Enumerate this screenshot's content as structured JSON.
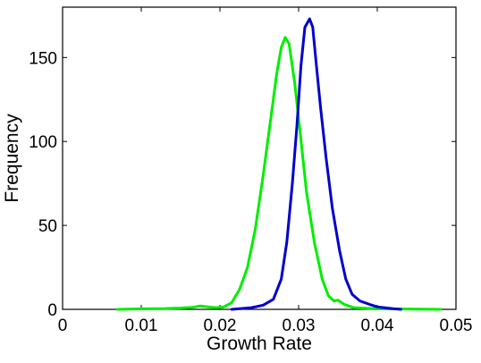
{
  "chart_data": {
    "type": "line",
    "title": "",
    "xlabel": "Growth Rate",
    "ylabel": "Frequency",
    "xlim": [
      0,
      0.05
    ],
    "ylim": [
      0,
      180
    ],
    "x_ticks": [
      0,
      0.01,
      0.02,
      0.03,
      0.04,
      0.05
    ],
    "x_tick_labels": [
      "0",
      "0.01",
      "0.02",
      "0.03",
      "0.04",
      "0.05"
    ],
    "y_ticks": [
      0,
      50,
      100,
      150
    ],
    "y_tick_labels": [
      "0",
      "50",
      "100",
      "150"
    ],
    "grid": false,
    "legend": "none",
    "series": [
      {
        "color": "#00ee00",
        "points": [
          [
            0.007,
            0
          ],
          [
            0.01,
            0.3
          ],
          [
            0.013,
            0.5
          ],
          [
            0.015,
            0.8
          ],
          [
            0.0165,
            1.2
          ],
          [
            0.0175,
            2.0
          ],
          [
            0.0185,
            1.5
          ],
          [
            0.0195,
            1.0
          ],
          [
            0.0205,
            1.5
          ],
          [
            0.0215,
            4
          ],
          [
            0.0225,
            12
          ],
          [
            0.0235,
            25
          ],
          [
            0.0245,
            48
          ],
          [
            0.0255,
            80
          ],
          [
            0.0265,
            115
          ],
          [
            0.0272,
            140
          ],
          [
            0.0278,
            156
          ],
          [
            0.0283,
            162
          ],
          [
            0.0288,
            158
          ],
          [
            0.0295,
            135
          ],
          [
            0.0302,
            105
          ],
          [
            0.031,
            70
          ],
          [
            0.032,
            40
          ],
          [
            0.033,
            18
          ],
          [
            0.0338,
            8
          ],
          [
            0.0345,
            5
          ],
          [
            0.035,
            5.5
          ],
          [
            0.0358,
            3
          ],
          [
            0.037,
            1
          ],
          [
            0.04,
            0.3
          ],
          [
            0.044,
            0.2
          ],
          [
            0.048,
            0
          ]
        ]
      },
      {
        "color": "#0000cc",
        "points": [
          [
            0.0215,
            0
          ],
          [
            0.024,
            1
          ],
          [
            0.0255,
            2.5
          ],
          [
            0.0268,
            6
          ],
          [
            0.0278,
            18
          ],
          [
            0.0285,
            40
          ],
          [
            0.0292,
            75
          ],
          [
            0.0298,
            110
          ],
          [
            0.0303,
            145
          ],
          [
            0.0308,
            168
          ],
          [
            0.0314,
            173
          ],
          [
            0.0318,
            168
          ],
          [
            0.0322,
            148
          ],
          [
            0.0328,
            120
          ],
          [
            0.0335,
            90
          ],
          [
            0.0343,
            60
          ],
          [
            0.0352,
            35
          ],
          [
            0.036,
            18
          ],
          [
            0.0368,
            9
          ],
          [
            0.0378,
            5
          ],
          [
            0.039,
            3
          ],
          [
            0.04,
            1.5
          ],
          [
            0.042,
            0.4
          ],
          [
            0.043,
            0
          ]
        ]
      }
    ]
  }
}
